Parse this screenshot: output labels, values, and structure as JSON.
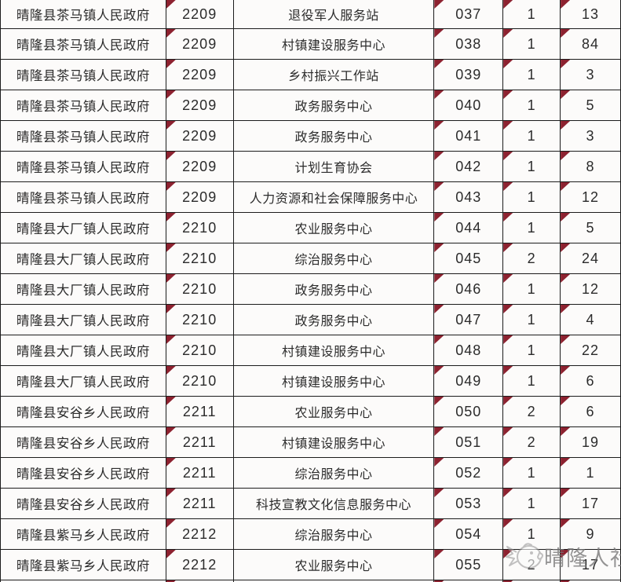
{
  "table": {
    "rows": [
      {
        "org": "晴隆县茶马镇人民政府",
        "unit_code": "2209",
        "dept": "退役军人服务站",
        "pos_code": "037",
        "num1": "1",
        "num2": "13"
      },
      {
        "org": "晴隆县茶马镇人民政府",
        "unit_code": "2209",
        "dept": "村镇建设服务中心",
        "pos_code": "038",
        "num1": "1",
        "num2": "84"
      },
      {
        "org": "晴隆县茶马镇人民政府",
        "unit_code": "2209",
        "dept": "乡村振兴工作站",
        "pos_code": "039",
        "num1": "1",
        "num2": "3"
      },
      {
        "org": "晴隆县茶马镇人民政府",
        "unit_code": "2209",
        "dept": "政务服务中心",
        "pos_code": "040",
        "num1": "1",
        "num2": "5"
      },
      {
        "org": "晴隆县茶马镇人民政府",
        "unit_code": "2209",
        "dept": "政务服务中心",
        "pos_code": "041",
        "num1": "1",
        "num2": "3"
      },
      {
        "org": "晴隆县茶马镇人民政府",
        "unit_code": "2209",
        "dept": "计划生育协会",
        "pos_code": "042",
        "num1": "1",
        "num2": "8"
      },
      {
        "org": "晴隆县茶马镇人民政府",
        "unit_code": "2209",
        "dept": "人力资源和社会保障服务中心",
        "pos_code": "043",
        "num1": "1",
        "num2": "12"
      },
      {
        "org": "晴隆县大厂镇人民政府",
        "unit_code": "2210",
        "dept": "农业服务中心",
        "pos_code": "044",
        "num1": "1",
        "num2": "5"
      },
      {
        "org": "晴隆县大厂镇人民政府",
        "unit_code": "2210",
        "dept": "综治服务中心",
        "pos_code": "045",
        "num1": "2",
        "num2": "24"
      },
      {
        "org": "晴隆县大厂镇人民政府",
        "unit_code": "2210",
        "dept": "政务服务中心",
        "pos_code": "046",
        "num1": "1",
        "num2": "12"
      },
      {
        "org": "晴隆县大厂镇人民政府",
        "unit_code": "2210",
        "dept": "政务服务中心",
        "pos_code": "047",
        "num1": "1",
        "num2": "4"
      },
      {
        "org": "晴隆县大厂镇人民政府",
        "unit_code": "2210",
        "dept": "村镇建设服务中心",
        "pos_code": "048",
        "num1": "1",
        "num2": "22"
      },
      {
        "org": "晴隆县大厂镇人民政府",
        "unit_code": "2210",
        "dept": "村镇建设服务中心",
        "pos_code": "049",
        "num1": "1",
        "num2": "6"
      },
      {
        "org": "晴隆县安谷乡人民政府",
        "unit_code": "2211",
        "dept": "农业服务中心",
        "pos_code": "050",
        "num1": "2",
        "num2": "6"
      },
      {
        "org": "晴隆县安谷乡人民政府",
        "unit_code": "2211",
        "dept": "村镇建设服务中心",
        "pos_code": "051",
        "num1": "2",
        "num2": "19"
      },
      {
        "org": "晴隆县安谷乡人民政府",
        "unit_code": "2211",
        "dept": "综治服务中心",
        "pos_code": "052",
        "num1": "1",
        "num2": "1"
      },
      {
        "org": "晴隆县安谷乡人民政府",
        "unit_code": "2211",
        "dept": "科技宣教文化信息服务中心",
        "pos_code": "053",
        "num1": "1",
        "num2": "17"
      },
      {
        "org": "晴隆县紫马乡人民政府",
        "unit_code": "2212",
        "dept": "综治服务中心",
        "pos_code": "054",
        "num1": "1",
        "num2": "9"
      },
      {
        "org": "晴隆县紫马乡人民政府",
        "unit_code": "2212",
        "dept": "农业服务中心",
        "pos_code": "055",
        "num1": "2",
        "num2": "17"
      }
    ]
  },
  "watermark": {
    "text": "晴隆人社"
  },
  "icons": {
    "cell_marker": "red-corner-triangle",
    "watermark_logo": "qinglong-renshe-bird-logo"
  },
  "colors": {
    "marker": "#8d2230",
    "border": "#1c1c1c",
    "text": "#2b2b2b",
    "watermark_text": "#767676",
    "background": "#fcfbfa"
  }
}
